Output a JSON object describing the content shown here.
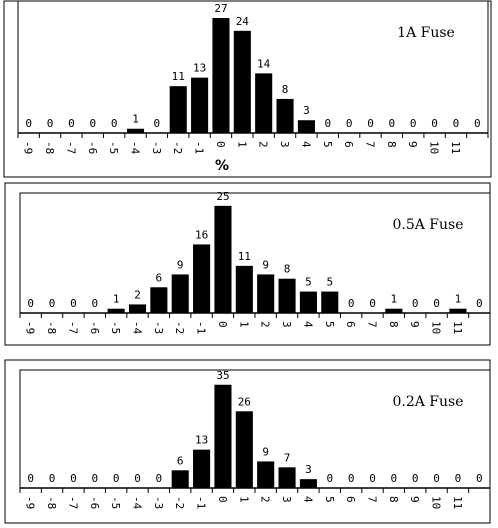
{
  "chart_data": [
    {
      "type": "bar",
      "title": "1A Fuse",
      "xlabel": "%",
      "color": "#000000",
      "categories": [
        "-9",
        "-8",
        "-7",
        "-6",
        "-5",
        "-4",
        "-3",
        "-2",
        "-1",
        "0",
        "1",
        "2",
        "3",
        "4",
        "5",
        "6",
        "7",
        "8",
        "9",
        "10",
        "11",
        null
      ],
      "values": [
        0,
        0,
        0,
        0,
        0,
        1,
        0,
        11,
        13,
        27,
        24,
        14,
        8,
        3,
        0,
        0,
        0,
        0,
        0,
        0,
        0,
        0
      ],
      "ylim": [
        0,
        31
      ]
    },
    {
      "type": "bar",
      "title": "0.5A Fuse",
      "color": "#000000",
      "categories": [
        "-9",
        "-8",
        "-7",
        "-6",
        "-5",
        "-4",
        "-3",
        "-2",
        "-1",
        "0",
        "1",
        "2",
        "3",
        "4",
        "5",
        "6",
        "7",
        "8",
        "9",
        "10",
        "11",
        null
      ],
      "values": [
        0,
        0,
        0,
        0,
        1,
        2,
        6,
        9,
        16,
        25,
        11,
        9,
        8,
        5,
        5,
        0,
        0,
        1,
        0,
        0,
        1,
        0
      ],
      "ylim": [
        0,
        28
      ]
    },
    {
      "type": "bar",
      "title": "0.2A Fuse",
      "color": "#000000",
      "categories": [
        "-9",
        "-8",
        "-7",
        "-6",
        "-5",
        "-4",
        "-3",
        "-2",
        "-1",
        "0",
        "1",
        "2",
        "3",
        "4",
        "5",
        "6",
        "7",
        "8",
        "9",
        "10",
        "11",
        null
      ],
      "values": [
        0,
        0,
        0,
        0,
        0,
        0,
        0,
        6,
        13,
        35,
        26,
        9,
        7,
        3,
        0,
        0,
        0,
        0,
        0,
        0,
        0,
        0
      ],
      "ylim": [
        0,
        40
      ]
    }
  ]
}
